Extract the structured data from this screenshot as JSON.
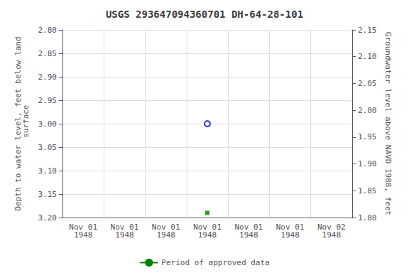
{
  "chart_data": {
    "type": "scatter",
    "title": "USGS 293647094360701 DH-64-28-101",
    "y_label": "Depth to water level, feet below land\n surface",
    "y2_label": "Groundwater level above NAVD 1988, feet",
    "categories": [
      "Nov 01\n1948",
      "Nov 01\n1948",
      "Nov 01\n1948",
      "Nov 01\n1948",
      "Nov 01\n1948",
      "Nov 01\n1948",
      "Nov 02\n1948"
    ],
    "ylim": [
      3.2,
      2.8
    ],
    "yticks": [
      {
        "value": 2.8,
        "label": "2.80"
      },
      2.85,
      {
        "value": 2.9,
        "label": "2.90"
      },
      2.95,
      {
        "value": 3.0,
        "label": "3.00"
      },
      3.05,
      {
        "value": 3.1,
        "label": "3.10"
      },
      3.15,
      {
        "value": 3.2,
        "label": "3.20"
      }
    ],
    "y2lim": [
      1.8,
      2.15
    ],
    "y2ticks": [
      2.15,
      {
        "value": 2.1,
        "label": "2.10"
      },
      2.05,
      {
        "value": 2.0,
        "label": "2.00"
      },
      1.95,
      {
        "value": 1.9,
        "label": "1.90"
      },
      1.85,
      {
        "value": 1.8,
        "label": "1.80"
      }
    ],
    "series": [
      {
        "type": "scatter",
        "color": "blue",
        "marker": "open_circle",
        "values": [
          null,
          null,
          null,
          3.0,
          null,
          null,
          null
        ]
      },
      {
        "type": "scatter",
        "color": "green",
        "marker": "square",
        "values": [
          null,
          null,
          null,
          3.19,
          null,
          null,
          null
        ]
      },
      {
        "name": "Period of approved data",
        "type": "line",
        "color": "green",
        "values": [
          null,
          null,
          null,
          null,
          null,
          null,
          null
        ]
      }
    ],
    "grid": true,
    "legend": "bottom"
  }
}
